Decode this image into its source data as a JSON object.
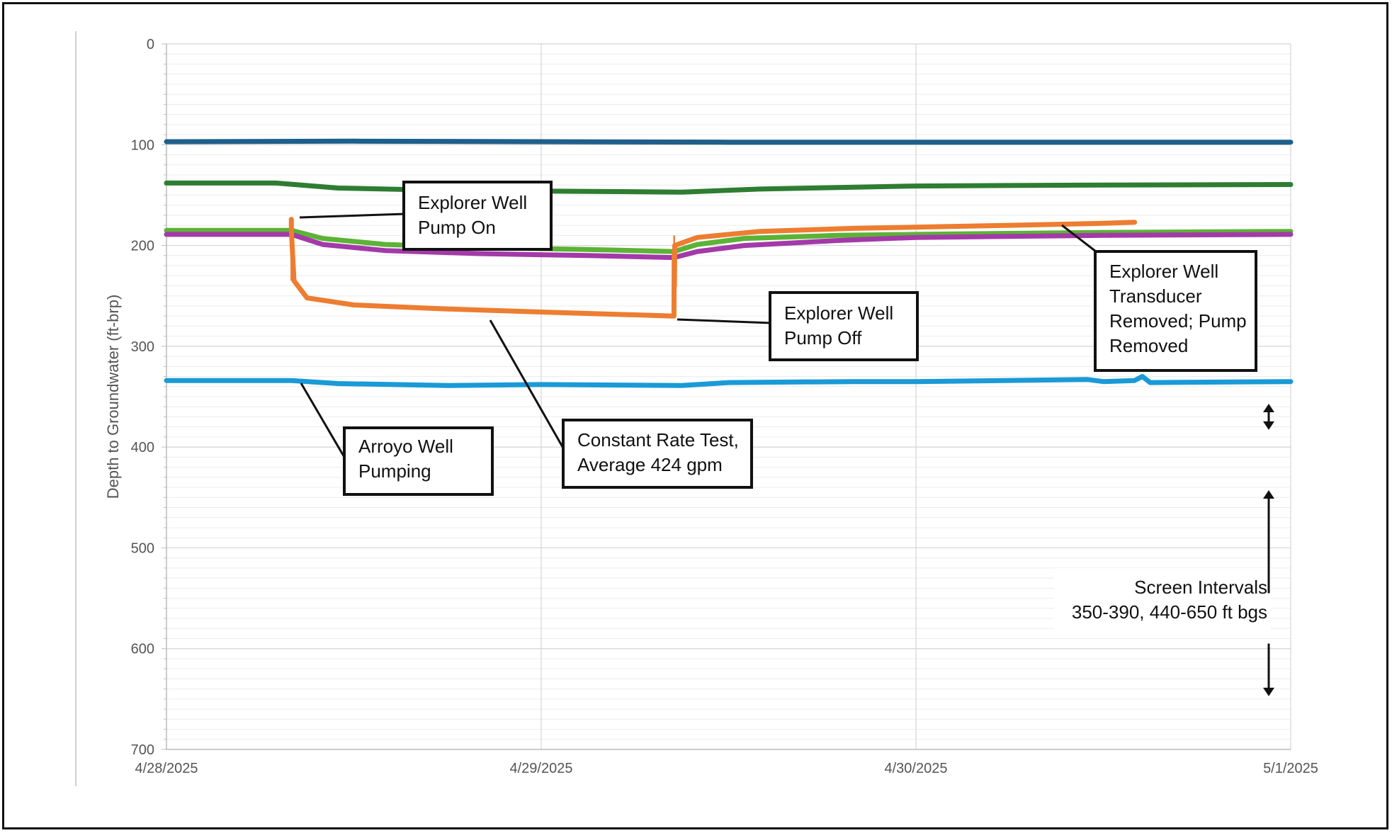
{
  "chart_data": {
    "type": "line",
    "title": "",
    "xlabel": "",
    "ylabel": "Depth to Groundwater (ft-brp)",
    "x_ticks": [
      "4/28/2025",
      "4/29/2025",
      "4/30/2025",
      "5/1/2025"
    ],
    "xlim": [
      "4/28/2025 00:00",
      "5/1/2025 00:00"
    ],
    "y_ticks": [
      "0",
      "100",
      "200",
      "300",
      "400",
      "500",
      "600",
      "700"
    ],
    "ylim": [
      0,
      700
    ],
    "y_reversed": true,
    "grid": true,
    "legend": "none",
    "series": [
      {
        "color": "#1f5f8b",
        "points": [
          [
            "4/28/2025 00:00",
            97
          ],
          [
            "4/28/2025 12:00",
            96.5
          ],
          [
            "4/29/2025 12:00",
            97.5
          ],
          [
            "4/30/2025 12:00",
            97.5
          ],
          [
            "5/1/2025 00:00",
            97.5
          ]
        ]
      },
      {
        "color": "#2e7d32",
        "points": [
          [
            "4/28/2025 00:00",
            138
          ],
          [
            "4/28/2025 07:00",
            138
          ],
          [
            "4/28/2025 11:00",
            143
          ],
          [
            "4/28/2025 17:00",
            145
          ],
          [
            "4/29/2025 00:00",
            146
          ],
          [
            "4/29/2025 09:00",
            147
          ],
          [
            "4/29/2025 14:00",
            144
          ],
          [
            "4/30/2025 00:00",
            141
          ],
          [
            "4/30/2025 12:00",
            140
          ],
          [
            "5/1/2025 00:00",
            139.5
          ]
        ]
      },
      {
        "color": "#5cb336",
        "points": [
          [
            "4/28/2025 00:00",
            185
          ],
          [
            "4/28/2025 08:00",
            185
          ],
          [
            "4/28/2025 10:00",
            193
          ],
          [
            "4/28/2025 14:00",
            199
          ],
          [
            "4/28/2025 20:00",
            202
          ],
          [
            "4/29/2025 03:00",
            204
          ],
          [
            "4/29/2025 08:30",
            206
          ],
          [
            "4/29/2025 10:00",
            199
          ],
          [
            "4/29/2025 13:00",
            193
          ],
          [
            "4/29/2025 19:00",
            190
          ],
          [
            "4/30/2025 00:00",
            189
          ],
          [
            "4/30/2025 12:00",
            187
          ],
          [
            "5/1/2025 00:00",
            186
          ]
        ]
      },
      {
        "color": "#a33aa8",
        "points": [
          [
            "4/28/2025 00:00",
            189
          ],
          [
            "4/28/2025 08:00",
            189
          ],
          [
            "4/28/2025 10:00",
            199
          ],
          [
            "4/28/2025 14:00",
            205
          ],
          [
            "4/28/2025 20:00",
            208
          ],
          [
            "4/29/2025 03:00",
            210
          ],
          [
            "4/29/2025 08:30",
            212
          ],
          [
            "4/29/2025 10:00",
            206
          ],
          [
            "4/29/2025 13:00",
            200
          ],
          [
            "4/29/2025 19:00",
            195
          ],
          [
            "4/30/2025 00:00",
            192
          ],
          [
            "4/30/2025 12:00",
            190
          ],
          [
            "5/1/2025 00:00",
            189
          ]
        ]
      },
      {
        "color": "#ed7d31",
        "points": [
          [
            "4/28/2025 08:00",
            174
          ],
          [
            "4/28/2025 08:00",
            185
          ],
          [
            "4/28/2025 08:10",
            235
          ],
          [
            "4/28/2025 09:00",
            252
          ],
          [
            "4/28/2025 12:00",
            259
          ],
          [
            "4/28/2025 18:00",
            263
          ],
          [
            "4/29/2025 00:00",
            266
          ],
          [
            "4/29/2025 08:30",
            270
          ],
          [
            "4/29/2025 08:31",
            208
          ],
          [
            "4/29/2025 08:32",
            240
          ],
          [
            "4/29/2025 08:33",
            200
          ],
          [
            "4/29/2025 10:00",
            192
          ],
          [
            "4/29/2025 14:00",
            186
          ],
          [
            "4/29/2025 20:00",
            183
          ],
          [
            "4/30/2025 06:00",
            180
          ],
          [
            "4/30/2025 12:00",
            178
          ],
          [
            "4/30/2025 14:00",
            177
          ]
        ]
      },
      {
        "color": "#1a9ad6",
        "points": [
          [
            "4/28/2025 00:00",
            334
          ],
          [
            "4/28/2025 08:00",
            334
          ],
          [
            "4/28/2025 11:00",
            337
          ],
          [
            "4/28/2025 18:00",
            339
          ],
          [
            "4/29/2025 00:00",
            338
          ],
          [
            "4/29/2025 09:00",
            339
          ],
          [
            "4/29/2025 12:00",
            336
          ],
          [
            "4/29/2025 20:00",
            335
          ],
          [
            "4/30/2025 00:00",
            335
          ],
          [
            "4/30/2025 11:00",
            333
          ],
          [
            "4/30/2025 12:00",
            335
          ],
          [
            "4/30/2025 14:00",
            334
          ],
          [
            "4/30/2025 14:30",
            330
          ],
          [
            "4/30/2025 15:00",
            336
          ],
          [
            "5/1/2025 00:00",
            335
          ]
        ]
      }
    ],
    "annotations": [
      {
        "lines": [
          "Explorer Well",
          "Pump On"
        ],
        "points_to": [
          "4/28/2025 08:00",
          174
        ]
      },
      {
        "lines": [
          "Explorer Well",
          "Pump Off"
        ],
        "points_to": [
          "4/29/2025 08:30",
          270
        ]
      },
      {
        "lines": [
          "Explorer Well",
          "Transducer",
          "Removed; Pump",
          "Removed"
        ],
        "points_to": [
          "4/30/2025 14:00",
          177
        ]
      },
      {
        "lines": [
          "Arroyo Well",
          "Pumping"
        ],
        "points_to": [
          "4/28/2025 08:30",
          334
        ]
      },
      {
        "lines": [
          "Constant Rate Test,",
          "Average 424 gpm"
        ],
        "points_to": [
          "4/28/2025 21:00",
          265
        ]
      },
      {
        "lines": [
          "Screen Intervals",
          "350-390, 440-650 ft bgs"
        ],
        "points_to": "right side"
      }
    ],
    "screen_intervals": [
      [
        350,
        390
      ],
      [
        440,
        650
      ]
    ]
  }
}
